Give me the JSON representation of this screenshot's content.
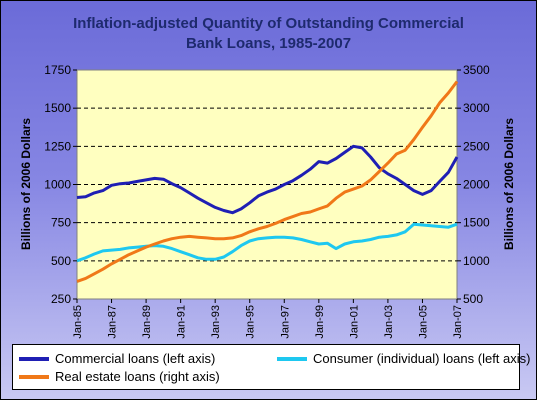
{
  "chart_data": {
    "type": "line",
    "title": "Inflation-adjusted Quantity of Outstanding Commercial\nBank Loans, 1985-2007",
    "ylabel": "Billions of 2006 Dollars",
    "y2label": "Billions of 2006 Dollars",
    "ylim": [
      250,
      1750
    ],
    "y2lim": [
      500,
      3500
    ],
    "yticks": [
      "250",
      "500",
      "750",
      "1000",
      "1250",
      "1500",
      "1750"
    ],
    "y2ticks": [
      "500",
      "1000",
      "1500",
      "2000",
      "2500",
      "3000",
      "3500"
    ],
    "xticks": [
      "Jan-85",
      "Jan-87",
      "Jan-89",
      "Jan-91",
      "Jan-93",
      "Jan-95",
      "Jan-97",
      "Jan-99",
      "Jan-01",
      "Jan-03",
      "Jan-05",
      "Jan-07"
    ],
    "xlim": [
      1985,
      2007
    ],
    "plot_background": "#ffffc0",
    "grid": "horizontal dashed",
    "legend_position": "bottom",
    "series": [
      {
        "name": "Commercial loans (left axis)",
        "axis": "left",
        "color": "#1f1fb4",
        "x": [
          1985,
          1985.5,
          1986,
          1986.5,
          1987,
          1987.5,
          1988,
          1988.5,
          1989,
          1989.5,
          1990,
          1990.5,
          1991,
          1991.5,
          1992,
          1992.5,
          1993,
          1993.5,
          1994,
          1994.5,
          1995,
          1995.5,
          1996,
          1996.5,
          1997,
          1997.5,
          1998,
          1998.5,
          1999,
          1999.5,
          2000,
          2000.5,
          2001,
          2001.5,
          2002,
          2002.5,
          2003,
          2003.5,
          2004,
          2004.5,
          2005,
          2005.5,
          2006,
          2006.5,
          2007
        ],
        "values": [
          915,
          920,
          945,
          960,
          995,
          1005,
          1010,
          1020,
          1030,
          1040,
          1035,
          1005,
          980,
          945,
          910,
          880,
          850,
          830,
          815,
          840,
          880,
          925,
          950,
          970,
          1000,
          1025,
          1060,
          1100,
          1150,
          1140,
          1170,
          1210,
          1250,
          1240,
          1180,
          1110,
          1070,
          1040,
          1000,
          960,
          935,
          960,
          1020,
          1080,
          1180
        ]
      },
      {
        "name": "Consumer (individual) loans (left axis)",
        "axis": "left",
        "color": "#1ec8f0",
        "x": [
          1985,
          1985.5,
          1986,
          1986.5,
          1987,
          1987.5,
          1988,
          1988.5,
          1989,
          1989.5,
          1990,
          1990.5,
          1991,
          1991.5,
          1992,
          1992.5,
          1993,
          1993.5,
          1994,
          1994.5,
          1995,
          1995.5,
          1996,
          1996.5,
          1997,
          1997.5,
          1998,
          1998.5,
          1999,
          1999.5,
          2000,
          2000.5,
          2001,
          2001.5,
          2002,
          2002.5,
          2003,
          2003.5,
          2004,
          2004.5,
          2005,
          2005.5,
          2006,
          2006.5,
          2007
        ],
        "values": [
          500,
          520,
          545,
          565,
          570,
          575,
          585,
          590,
          595,
          600,
          595,
          580,
          560,
          540,
          520,
          510,
          510,
          525,
          560,
          600,
          630,
          645,
          650,
          655,
          655,
          650,
          640,
          625,
          610,
          615,
          580,
          610,
          625,
          630,
          640,
          655,
          660,
          670,
          690,
          740,
          735,
          730,
          725,
          720,
          740
        ]
      },
      {
        "name": "Real estate loans (right axis)",
        "axis": "right",
        "color": "#f07818",
        "x": [
          1985,
          1985.5,
          1986,
          1986.5,
          1987,
          1987.5,
          1988,
          1988.5,
          1989,
          1989.5,
          1990,
          1990.5,
          1991,
          1991.5,
          1992,
          1992.5,
          1993,
          1993.5,
          1994,
          1994.5,
          1995,
          1995.5,
          1996,
          1996.5,
          1997,
          1997.5,
          1998,
          1998.5,
          1999,
          1999.5,
          2000,
          2000.5,
          2001,
          2001.5,
          2002,
          2002.5,
          2003,
          2003.5,
          2004,
          2004.5,
          2005,
          2005.5,
          2006,
          2006.5,
          2007
        ],
        "values": [
          730,
          770,
          830,
          890,
          960,
          1020,
          1080,
          1130,
          1180,
          1220,
          1260,
          1290,
          1310,
          1320,
          1310,
          1300,
          1290,
          1290,
          1300,
          1330,
          1380,
          1420,
          1450,
          1490,
          1540,
          1580,
          1620,
          1640,
          1680,
          1720,
          1820,
          1900,
          1940,
          1980,
          2060,
          2170,
          2280,
          2400,
          2450,
          2590,
          2750,
          2900,
          3070,
          3200,
          3350
        ]
      }
    ]
  }
}
